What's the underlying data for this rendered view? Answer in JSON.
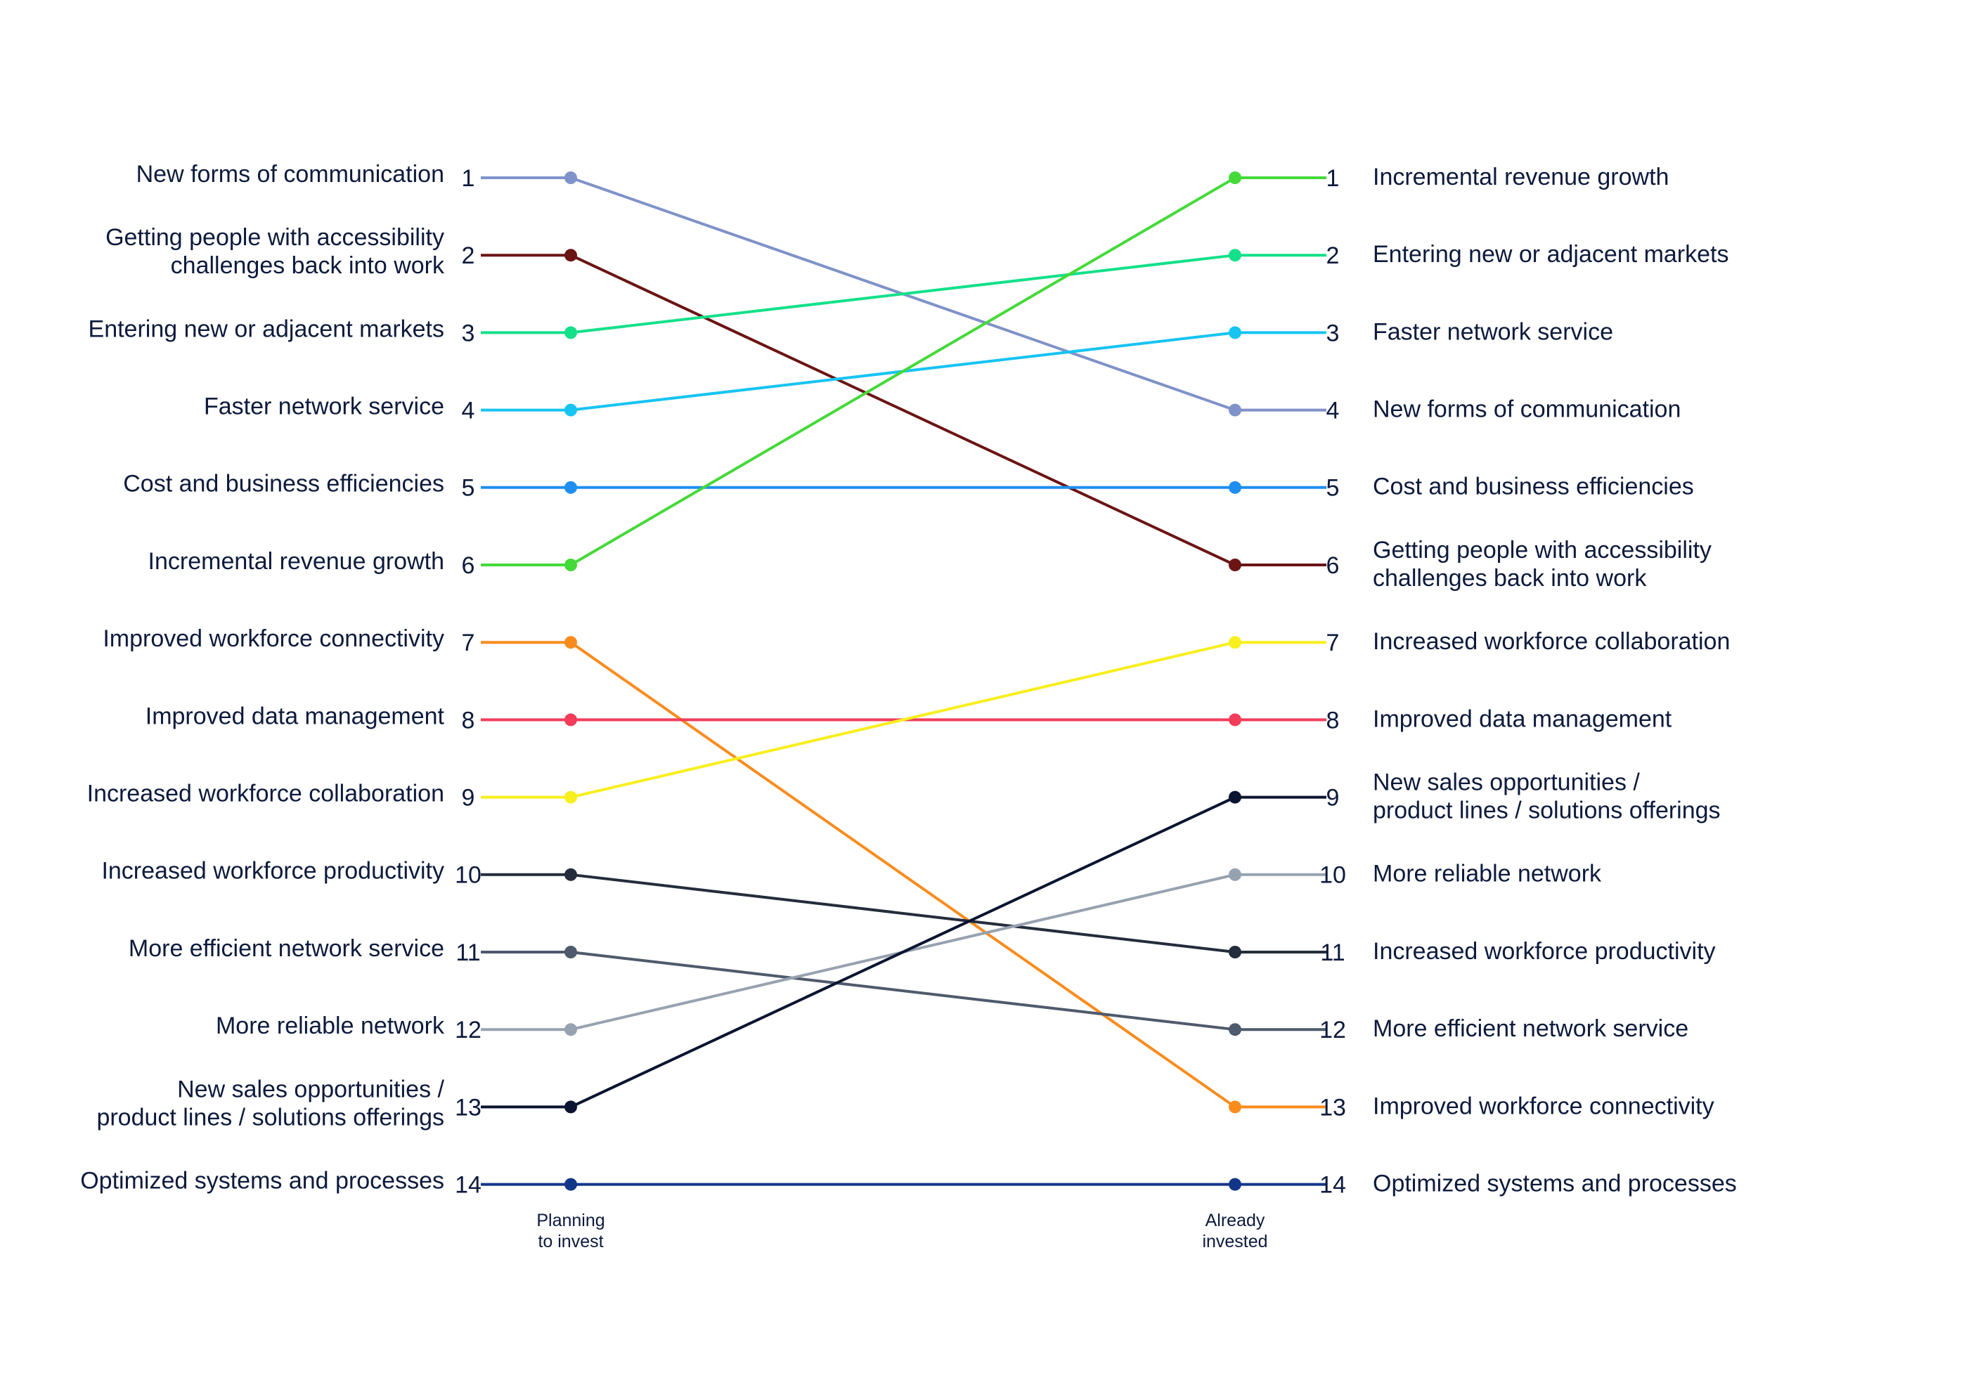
{
  "chart_data": {
    "type": "line",
    "chart_kind": "slope chart (rank comparison)",
    "x": [
      "Planning to invest",
      "Already invested"
    ],
    "column_labels": [
      [
        "Planning",
        "to invest"
      ],
      [
        "Already",
        "invested"
      ]
    ],
    "rank_axis": {
      "min": 1,
      "max": 14,
      "direction": "1 at top"
    },
    "grid": false,
    "legend": "none",
    "series": [
      {
        "name": "New forms of communication",
        "values": [
          1,
          4
        ],
        "color": "#7f92c9"
      },
      {
        "name": "Getting people with accessibility challenges back into work",
        "values": [
          2,
          6
        ],
        "color": "#6b1414"
      },
      {
        "name": "Entering new or adjacent markets",
        "values": [
          3,
          2
        ],
        "color": "#14e08a"
      },
      {
        "name": "Faster network service",
        "values": [
          4,
          3
        ],
        "color": "#17c4f2"
      },
      {
        "name": "Cost and business efficiencies",
        "values": [
          5,
          5
        ],
        "color": "#1e8ff0"
      },
      {
        "name": "Incremental revenue growth",
        "values": [
          6,
          1
        ],
        "color": "#45d93a"
      },
      {
        "name": "Improved workforce connectivity",
        "values": [
          7,
          13
        ],
        "color": "#fa8c1e"
      },
      {
        "name": "Improved data management",
        "values": [
          8,
          8
        ],
        "color": "#f23c5a"
      },
      {
        "name": "Increased workforce collaboration",
        "values": [
          9,
          7
        ],
        "color": "#f7ef1e"
      },
      {
        "name": "Increased workforce productivity",
        "values": [
          10,
          11
        ],
        "color": "#252c3c"
      },
      {
        "name": "More efficient network service",
        "values": [
          11,
          12
        ],
        "color": "#4f5a6c"
      },
      {
        "name": "More reliable network",
        "values": [
          12,
          10
        ],
        "color": "#97a2b0"
      },
      {
        "name": "New sales opportunities / product lines / solutions offerings",
        "values": [
          13,
          9
        ],
        "color": "#0b1430"
      },
      {
        "name": "Optimized systems and processes",
        "values": [
          14,
          14
        ],
        "color": "#12378a"
      }
    ],
    "left_labels": [
      {
        "rank": 1,
        "lines": [
          "New forms of communication"
        ]
      },
      {
        "rank": 2,
        "lines": [
          "Getting people with accessibility",
          "challenges back into work"
        ]
      },
      {
        "rank": 3,
        "lines": [
          "Entering new or adjacent markets"
        ]
      },
      {
        "rank": 4,
        "lines": [
          "Faster network service"
        ]
      },
      {
        "rank": 5,
        "lines": [
          "Cost and business efficiencies"
        ]
      },
      {
        "rank": 6,
        "lines": [
          "Incremental revenue growth"
        ]
      },
      {
        "rank": 7,
        "lines": [
          "Improved workforce connectivity"
        ]
      },
      {
        "rank": 8,
        "lines": [
          "Improved data management"
        ]
      },
      {
        "rank": 9,
        "lines": [
          "Increased workforce collaboration"
        ]
      },
      {
        "rank": 10,
        "lines": [
          "Increased workforce productivity"
        ]
      },
      {
        "rank": 11,
        "lines": [
          "More efficient network service"
        ]
      },
      {
        "rank": 12,
        "lines": [
          "More reliable network"
        ]
      },
      {
        "rank": 13,
        "lines": [
          "New sales opportunities /",
          "product lines / solutions offerings"
        ]
      },
      {
        "rank": 14,
        "lines": [
          "Optimized systems and processes"
        ]
      }
    ],
    "right_labels": [
      {
        "rank": 1,
        "lines": [
          "Incremental revenue growth"
        ]
      },
      {
        "rank": 2,
        "lines": [
          "Entering new or adjacent markets"
        ]
      },
      {
        "rank": 3,
        "lines": [
          "Faster network service"
        ]
      },
      {
        "rank": 4,
        "lines": [
          "New forms of communication"
        ]
      },
      {
        "rank": 5,
        "lines": [
          "Cost and business efficiencies"
        ]
      },
      {
        "rank": 6,
        "lines": [
          "Getting people with accessibility",
          "challenges back into work"
        ]
      },
      {
        "rank": 7,
        "lines": [
          "Increased workforce collaboration"
        ]
      },
      {
        "rank": 8,
        "lines": [
          "Improved data management"
        ]
      },
      {
        "rank": 9,
        "lines": [
          "New sales opportunities /",
          "product lines / solutions offerings"
        ]
      },
      {
        "rank": 10,
        "lines": [
          "More reliable network"
        ]
      },
      {
        "rank": 11,
        "lines": [
          "Increased workforce productivity"
        ]
      },
      {
        "rank": 12,
        "lines": [
          "More efficient network service"
        ]
      },
      {
        "rank": 13,
        "lines": [
          "Improved workforce connectivity"
        ]
      },
      {
        "rank": 14,
        "lines": [
          "Optimized systems and processes"
        ]
      }
    ]
  }
}
